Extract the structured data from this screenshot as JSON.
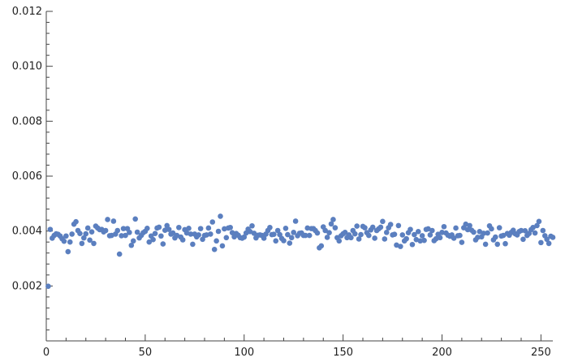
{
  "chart_data": {
    "type": "scatter",
    "title": "",
    "xlabel": "",
    "ylabel": "",
    "xlim": [
      0,
      256
    ],
    "ylim": [
      0,
      0.012
    ],
    "grid": false,
    "point_color": "#5b7fbf",
    "x_ticks": [
      {
        "value": 0,
        "label": "0"
      },
      {
        "value": 50,
        "label": "50"
      },
      {
        "value": 100,
        "label": "100"
      },
      {
        "value": 150,
        "label": "150"
      },
      {
        "value": 200,
        "label": "200"
      },
      {
        "value": 250,
        "label": "250"
      }
    ],
    "y_ticks": [
      {
        "value": 0.002,
        "label": "0.002"
      },
      {
        "value": 0.004,
        "label": "0.004"
      },
      {
        "value": 0.006,
        "label": "0.006"
      },
      {
        "value": 0.008,
        "label": "0.008"
      },
      {
        "value": 0.01,
        "label": "0.010"
      },
      {
        "value": 0.012,
        "label": "0.012"
      }
    ],
    "series": [
      {
        "x": [
          1,
          2,
          3,
          4,
          5,
          6,
          7,
          8,
          9,
          10,
          11,
          12,
          13,
          14,
          15,
          16,
          17,
          18,
          19,
          20,
          21,
          22,
          23,
          24,
          25,
          26,
          27,
          28,
          29,
          30,
          31,
          32,
          33,
          34,
          35,
          36,
          37,
          38,
          39,
          40,
          41,
          42,
          43,
          44,
          45,
          46,
          47,
          48,
          49,
          50,
          51,
          52,
          53,
          54,
          55,
          56,
          57,
          58,
          59,
          60,
          61,
          62,
          63,
          64,
          65,
          66,
          67,
          68,
          69,
          70,
          71,
          72,
          73,
          74,
          75,
          76,
          77,
          78,
          79,
          80,
          81,
          82,
          83,
          84,
          85,
          86,
          87,
          88,
          89,
          90,
          91,
          92,
          93,
          94,
          95,
          96,
          97,
          98,
          99,
          100,
          101,
          102,
          103,
          104,
          105,
          106,
          107,
          108,
          109,
          110,
          111,
          112,
          113,
          114,
          115,
          116,
          117,
          118,
          119,
          120,
          121,
          122,
          123,
          124,
          125,
          126,
          127,
          128,
          129,
          130,
          131,
          132,
          133,
          134,
          135,
          136,
          137,
          138,
          139,
          140,
          141,
          142,
          143,
          144,
          145,
          146,
          147,
          148,
          149,
          150,
          151,
          152,
          153,
          154,
          155,
          156,
          157,
          158,
          159,
          160,
          161,
          162,
          163,
          164,
          165,
          166,
          167,
          168,
          169,
          170,
          171,
          172,
          173,
          174,
          175,
          176,
          177,
          178,
          179,
          180,
          181,
          182,
          183,
          184,
          185,
          186,
          187,
          188,
          189,
          190,
          191,
          192,
          193,
          194,
          195,
          196,
          197,
          198,
          199,
          200,
          201,
          202,
          203,
          204,
          205,
          206,
          207,
          208,
          209,
          210,
          211,
          212,
          213,
          214,
          215,
          216,
          217,
          218,
          219,
          220,
          221,
          222,
          223,
          224,
          225,
          226,
          227,
          228,
          229,
          230,
          231,
          232,
          233,
          234,
          235,
          236,
          237,
          238,
          239,
          240,
          241,
          242,
          243,
          244,
          245,
          246,
          247,
          248,
          249,
          250,
          251,
          252,
          253,
          254,
          255,
          256
        ],
        "y": [
          0.00199,
          0.00406,
          0.00374,
          0.00384,
          0.0039,
          0.00388,
          0.00382,
          0.00372,
          0.00363,
          0.00382,
          0.00325,
          0.0036,
          0.00389,
          0.00425,
          0.00434,
          0.00402,
          0.00391,
          0.00355,
          0.00375,
          0.0039,
          0.00411,
          0.00367,
          0.00397,
          0.00355,
          0.00418,
          0.00411,
          0.00405,
          0.00406,
          0.00397,
          0.00402,
          0.00442,
          0.00383,
          0.00384,
          0.00436,
          0.00389,
          0.00402,
          0.00316,
          0.00383,
          0.00409,
          0.00384,
          0.00409,
          0.00395,
          0.00348,
          0.00364,
          0.00444,
          0.00396,
          0.00375,
          0.00384,
          0.00394,
          0.00399,
          0.0041,
          0.0036,
          0.00382,
          0.00369,
          0.00391,
          0.00411,
          0.00414,
          0.00382,
          0.00353,
          0.00403,
          0.0042,
          0.00406,
          0.00389,
          0.00393,
          0.00375,
          0.00384,
          0.00413,
          0.00378,
          0.00368,
          0.00405,
          0.00393,
          0.0041,
          0.00389,
          0.00352,
          0.00389,
          0.00379,
          0.00386,
          0.00409,
          0.0037,
          0.00384,
          0.00386,
          0.00411,
          0.00389,
          0.00433,
          0.00333,
          0.00364,
          0.00399,
          0.00454,
          0.00346,
          0.00408,
          0.00376,
          0.00411,
          0.00413,
          0.00394,
          0.00379,
          0.00391,
          0.00385,
          0.00376,
          0.00374,
          0.00378,
          0.00393,
          0.00407,
          0.00398,
          0.00419,
          0.00392,
          0.00375,
          0.00385,
          0.00386,
          0.00384,
          0.00374,
          0.00389,
          0.00402,
          0.00413,
          0.00387,
          0.00388,
          0.00364,
          0.00402,
          0.00387,
          0.00373,
          0.00365,
          0.0041,
          0.00387,
          0.00356,
          0.00376,
          0.00395,
          0.00436,
          0.00383,
          0.00392,
          0.00393,
          0.00384,
          0.00384,
          0.00411,
          0.00384,
          0.00409,
          0.00409,
          0.00402,
          0.00393,
          0.00339,
          0.00346,
          0.00415,
          0.00402,
          0.00377,
          0.00394,
          0.00426,
          0.00442,
          0.00412,
          0.00376,
          0.00364,
          0.00383,
          0.0039,
          0.00395,
          0.00376,
          0.00386,
          0.00376,
          0.00402,
          0.0039,
          0.00418,
          0.00371,
          0.00387,
          0.00417,
          0.00412,
          0.00394,
          0.00384,
          0.00404,
          0.00414,
          0.00374,
          0.00402,
          0.00408,
          0.00414,
          0.00435,
          0.00371,
          0.00395,
          0.00412,
          0.00424,
          0.00386,
          0.00388,
          0.00349,
          0.0042,
          0.00344,
          0.00386,
          0.00364,
          0.00372,
          0.00394,
          0.00406,
          0.00351,
          0.00387,
          0.00369,
          0.00398,
          0.00364,
          0.00383,
          0.00366,
          0.00406,
          0.00408,
          0.00386,
          0.00402,
          0.00365,
          0.00372,
          0.00388,
          0.00376,
          0.00395,
          0.00416,
          0.00393,
          0.00385,
          0.00381,
          0.00386,
          0.00374,
          0.00411,
          0.00383,
          0.00384,
          0.00359,
          0.00412,
          0.00425,
          0.00405,
          0.0042,
          0.00403,
          0.00396,
          0.00368,
          0.00377,
          0.00398,
          0.00379,
          0.00392,
          0.00352,
          0.00393,
          0.00419,
          0.00408,
          0.00368,
          0.00378,
          0.00352,
          0.00412,
          0.00382,
          0.00384,
          0.00354,
          0.00391,
          0.00385,
          0.00395,
          0.00403,
          0.0039,
          0.00386,
          0.00398,
          0.00402,
          0.0037,
          0.00401,
          0.00384,
          0.00391,
          0.00405,
          0.00413,
          0.00393,
          0.0042,
          0.00435,
          0.00358,
          0.00402,
          0.00383,
          0.0037,
          0.00355,
          0.00381,
          0.00377
        ]
      }
    ]
  }
}
